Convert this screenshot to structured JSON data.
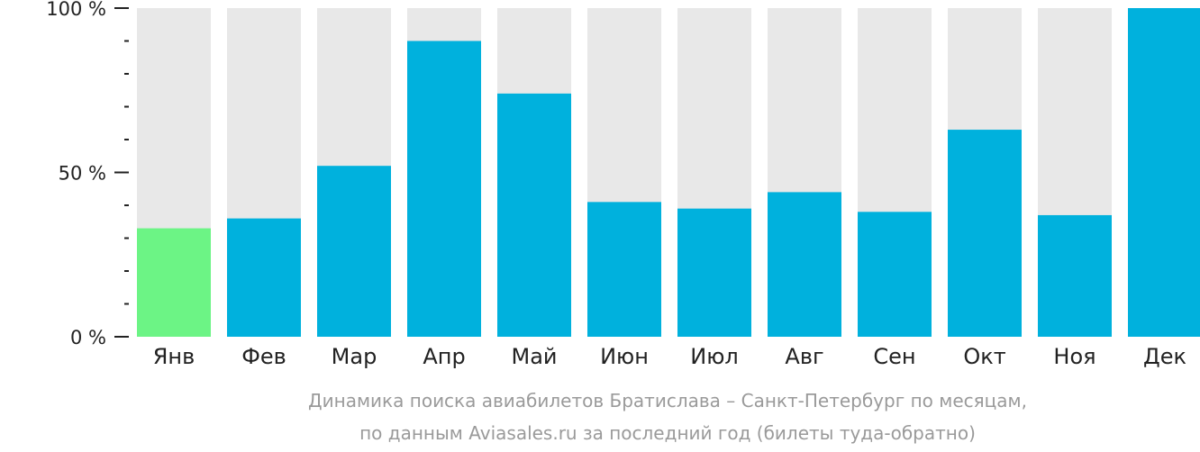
{
  "chart_data": {
    "type": "bar",
    "categories": [
      "Янв",
      "Фев",
      "Мар",
      "Апр",
      "Май",
      "Июн",
      "Июл",
      "Авг",
      "Сен",
      "Окт",
      "Ноя",
      "Дек"
    ],
    "values": [
      33,
      36,
      52,
      90,
      74,
      41,
      39,
      44,
      38,
      63,
      37,
      100
    ],
    "ylim": [
      0,
      100
    ],
    "yticks": [
      {
        "value": 0,
        "label": "0 %"
      },
      {
        "value": 50,
        "label": "50 %"
      },
      {
        "value": 100,
        "label": "100 %"
      }
    ],
    "minor_ticks_per_major": 5,
    "highlight_index": 0,
    "colors": {
      "bar": "#00b1dd",
      "highlight": "#6cf485",
      "background_bar": "#e8e8e8",
      "axis": "#222222",
      "caption": "#9a9a9a"
    },
    "caption_lines": [
      "Динамика поиска авиабилетов Братислава – Санкт-Петербург по месяцам,",
      "по данным Aviasales.ru за последний год (билеты туда-обратно)"
    ]
  }
}
